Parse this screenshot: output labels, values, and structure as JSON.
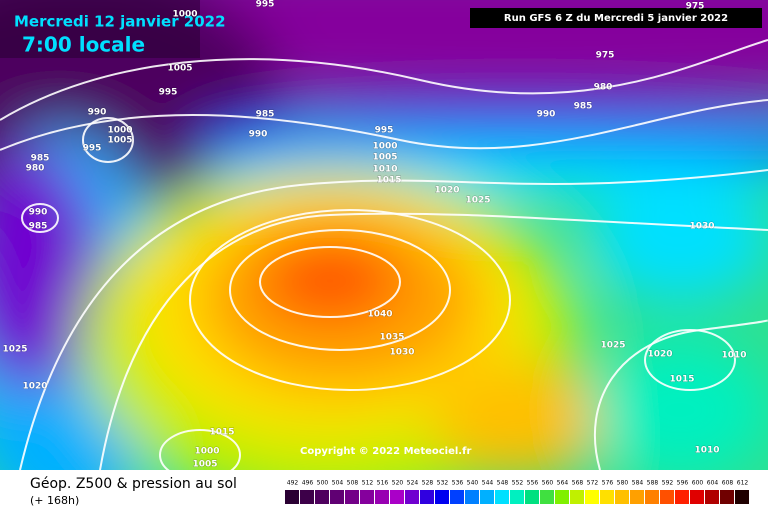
{
  "header": {
    "date": "Mercredi 12 janvier 2022",
    "time": "7:00 locale",
    "run": "Run GFS 6 Z du Mercredi 5 janvier 2022"
  },
  "copyright": "Copyright © 2022 Meteociel.fr",
  "legend": {
    "title": "Géop. Z500 & pression au sol",
    "subtitle": "(+ 168h)",
    "levels": [
      492,
      496,
      500,
      504,
      508,
      512,
      516,
      520,
      524,
      528,
      532,
      536,
      540,
      544,
      548,
      552,
      556,
      560,
      564,
      568,
      572,
      576,
      580,
      584,
      588,
      592,
      596,
      600,
      604,
      608,
      612
    ],
    "colors": [
      "#2a0033",
      "#3d0049",
      "#4e005e",
      "#600073",
      "#730088",
      "#85009d",
      "#9800b2",
      "#aa00c8",
      "#7000d0",
      "#3000e0",
      "#0000f0",
      "#0040ff",
      "#0080ff",
      "#00b0ff",
      "#00e0ff",
      "#00f0c0",
      "#00e080",
      "#40e040",
      "#80f000",
      "#c0f000",
      "#ffff00",
      "#ffe000",
      "#ffc000",
      "#ffa000",
      "#ff8000",
      "#ff5000",
      "#ff2000",
      "#e00000",
      "#b00000",
      "#700000",
      "#200000"
    ]
  },
  "isobars": [
    995,
    1005,
    995,
    1000,
    990,
    1000,
    1005,
    995,
    985,
    980,
    990,
    985,
    985,
    990,
    995,
    1000,
    1005,
    1010,
    1015,
    1020,
    1025,
    1040,
    1035,
    1030,
    975,
    975,
    980,
    985,
    990,
    1030,
    1025,
    1020,
    1015,
    1010,
    1010,
    1025,
    1020,
    1015,
    1000,
    1005
  ]
}
